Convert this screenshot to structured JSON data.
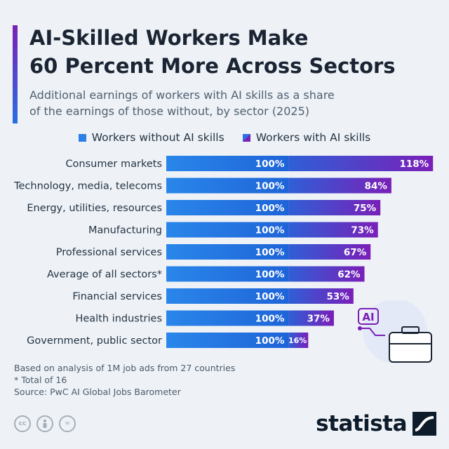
{
  "title_line1": "AI-Skilled Workers Make",
  "title_line2": "60 Percent More Across Sectors",
  "subtitle_line1": "Additional earnings of workers with AI skills as a share",
  "subtitle_line2": "of the earnings of those without, by sector (2025)",
  "legend": {
    "without": "Workers without AI skills",
    "with": "Workers with AI skills"
  },
  "chart_data": {
    "type": "bar",
    "orientation": "horizontal",
    "stacked": true,
    "categories": [
      "Consumer markets",
      "Technology, media, telecoms",
      "Energy, utilities, resources",
      "Manufacturing",
      "Professional services",
      "Average of all sectors*",
      "Financial services",
      "Health industries",
      "Government, public sector"
    ],
    "series": [
      {
        "name": "Workers without AI skills",
        "values": [
          100,
          100,
          100,
          100,
          100,
          100,
          100,
          100,
          100
        ],
        "labels": [
          "100%",
          "100%",
          "100%",
          "100%",
          "100%",
          "100%",
          "100%",
          "100%",
          "100%"
        ]
      },
      {
        "name": "Workers with AI skills",
        "values": [
          118,
          84,
          75,
          73,
          67,
          62,
          53,
          37,
          16
        ],
        "labels": [
          "118%",
          "84%",
          "75%",
          "73%",
          "67%",
          "62%",
          "53%",
          "37%",
          "16%"
        ]
      }
    ],
    "colors": {
      "without": "#2a80e6",
      "with": "#7a1fb8"
    }
  },
  "illustration_text": "AI",
  "notes": {
    "line1": "Based on analysis of 1M job ads from 27 countries",
    "line2": "* Total of 16",
    "line3": "Source: PwC AI Global Jobs Barometer"
  },
  "license_icons": [
    "cc-icon",
    "person-icon",
    "equals-icon"
  ],
  "cc_labels": {
    "cc": "cc",
    "equals": "="
  },
  "brand": "statista"
}
